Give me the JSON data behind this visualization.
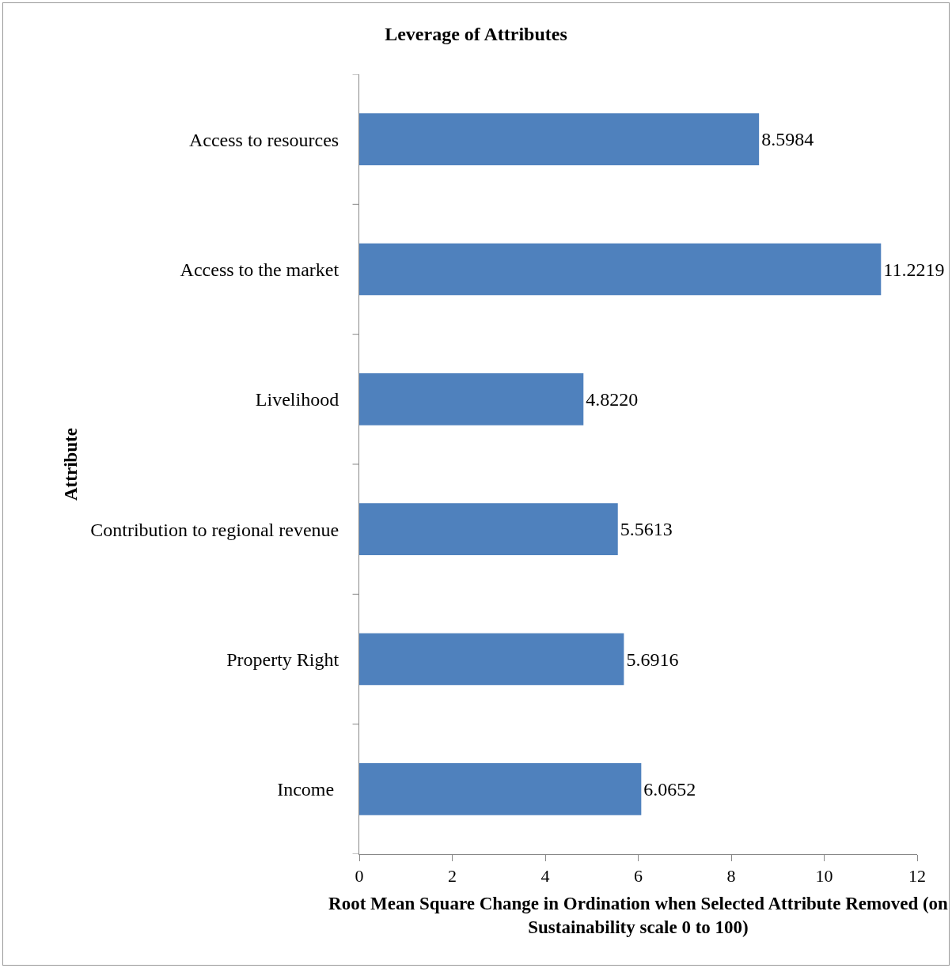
{
  "chart_data": {
    "type": "bar",
    "orientation": "horizontal",
    "title": "Leverage of Attributes",
    "xlabel": "Root Mean Square Change in Ordination when Selected Attribute Removed (on Sustainability scale 0 to 100)",
    "ylabel": "Attribute",
    "categories": [
      "Access to resources",
      "Access to the market",
      "Livelihood",
      "Contribution to regional revenue",
      "Property Right",
      "Income "
    ],
    "values": [
      8.5984,
      11.2219,
      4.822,
      5.5613,
      5.6916,
      6.0652
    ],
    "value_labels": [
      "8.5984",
      "11.2219",
      "4.8220",
      "5.5613",
      "5.6916",
      "6.0652"
    ],
    "color": "#4f81bd",
    "xlim": [
      0,
      12
    ],
    "xticks": [
      0,
      2,
      4,
      6,
      8,
      10,
      12
    ],
    "grid": false,
    "legend": false
  }
}
